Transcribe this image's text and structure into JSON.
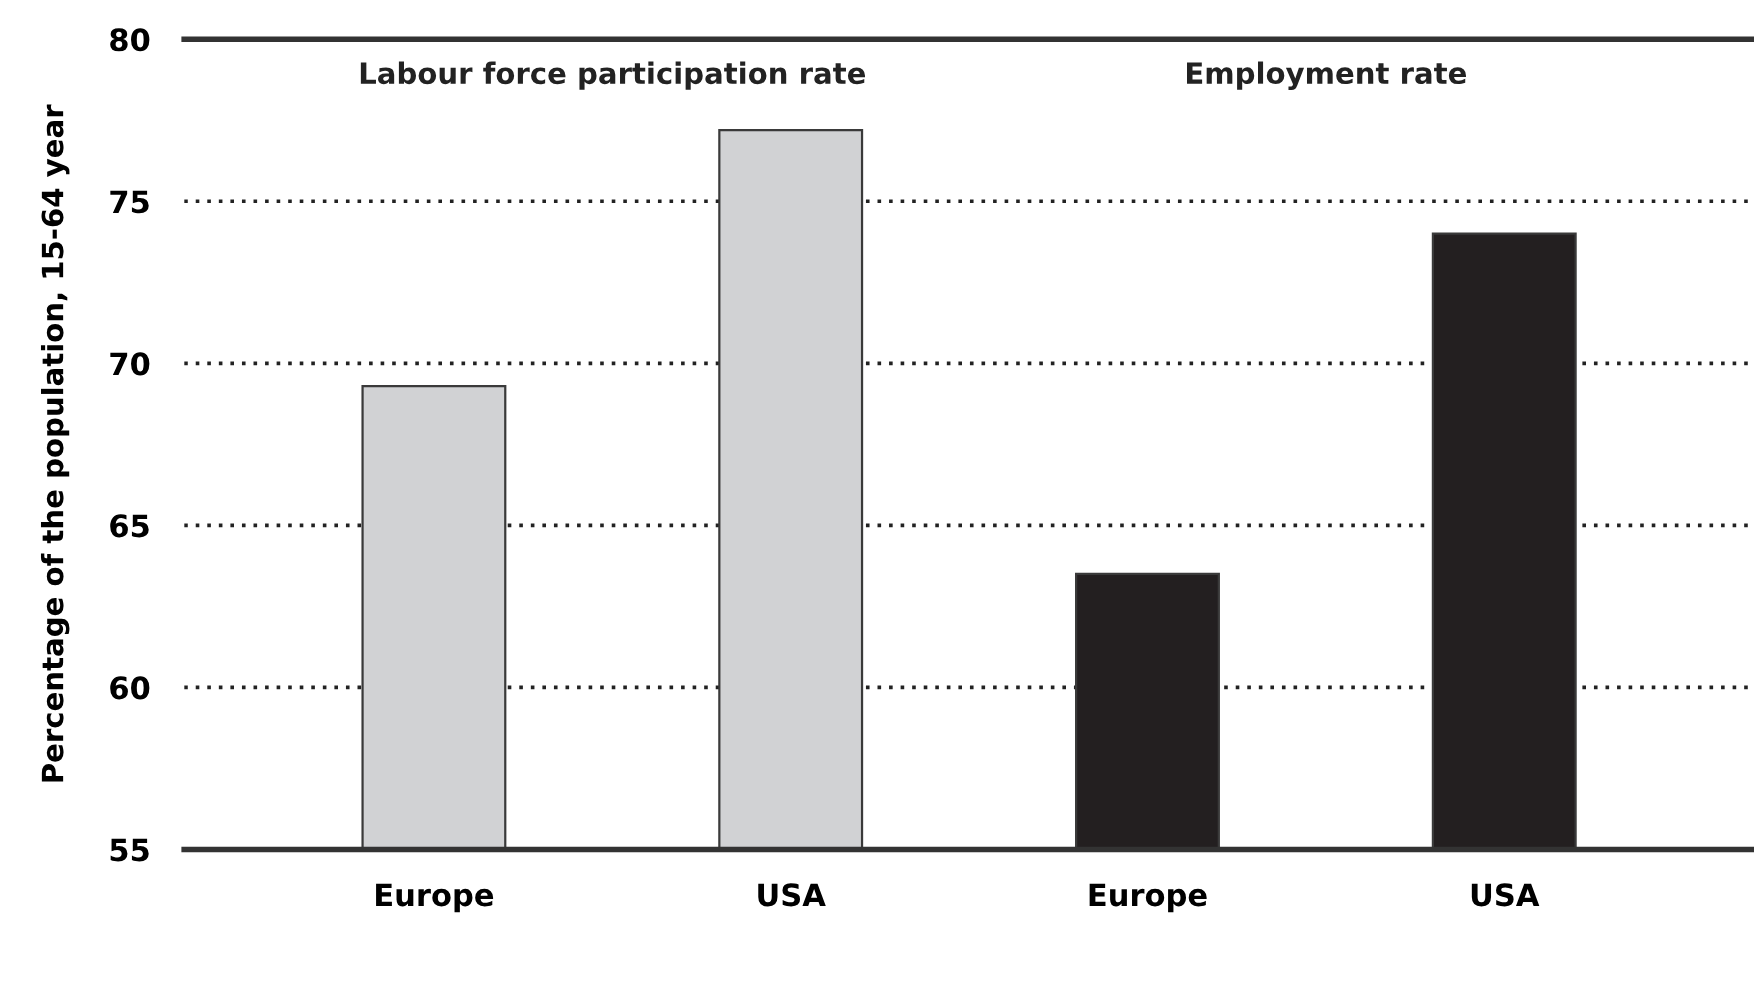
{
  "chart_data": {
    "type": "bar",
    "ylabel": "Percentage of the population, 15-64 year",
    "categories": [
      "Europe",
      "USA",
      "Europe",
      "USA"
    ],
    "values": [
      69.3,
      77.2,
      63.5,
      74.0
    ],
    "colors": [
      "#d1d2d4",
      "#d1d2d4",
      "#231f20",
      "#231f20"
    ],
    "ylim": [
      55,
      80
    ],
    "yticks": [
      55,
      60,
      65,
      70,
      75,
      80
    ],
    "grid": "y",
    "annotations": [
      "Labour force participation rate",
      "Employment rate"
    ]
  }
}
